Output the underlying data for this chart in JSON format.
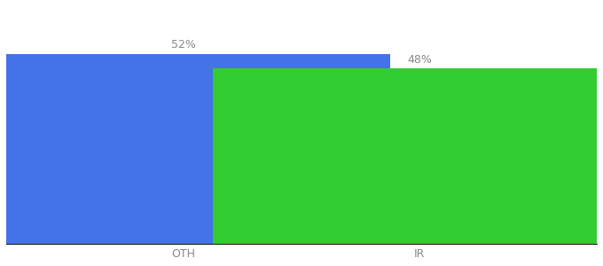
{
  "categories": [
    "OTH",
    "IR"
  ],
  "values": [
    52,
    48
  ],
  "bar_colors": [
    "#4472e8",
    "#33cc33"
  ],
  "label_format": "{}%",
  "ylim": [
    0,
    65
  ],
  "bar_width": 0.7,
  "x_positions": [
    0.3,
    0.7
  ],
  "xlim": [
    0.0,
    1.0
  ],
  "background_color": "#ffffff",
  "label_color": "#888888",
  "label_fontsize": 9,
  "tick_fontsize": 9
}
